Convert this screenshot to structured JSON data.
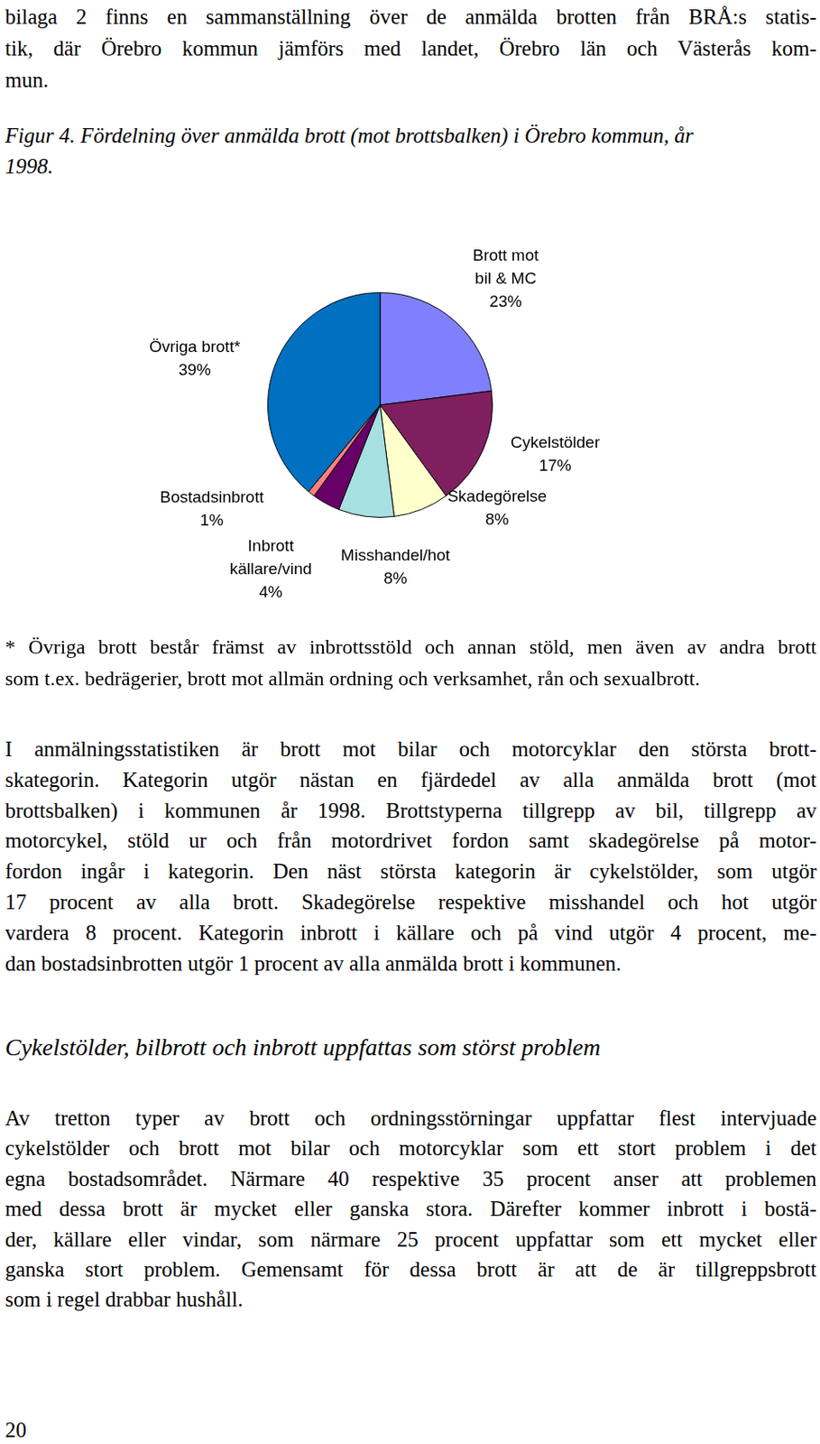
{
  "page": {
    "intro": [
      "bilaga 2 finns en sammanställning över de anmälda brotten från BRÅ:s statis-",
      "tik, där Örebro kommun jämförs med landet, Örebro län och Västerås kom-",
      "mun."
    ],
    "caption": [
      "Figur 4. Fördelning över anmälda brott (mot brottsbalken) i Örebro kommun, år",
      "1998."
    ],
    "footnote": [
      "* Övriga brott består främst av inbrottsstöld och annan stöld, men även av andra brott",
      "som t.ex. bedrägerier, brott mot allmän ordning och verksamhet, rån och sexualbrott."
    ],
    "paragraph1": [
      "I anmälningsstatistiken är brott mot bilar och motorcyklar den största brott-",
      "skategorin. Kategorin utgör nästan en fjärdedel av alla anmälda brott (mot",
      "brottsbalken) i kommunen år 1998. Brottstyperna tillgrepp av bil, tillgrepp av",
      "motorcykel, stöld ur och från motordrivet fordon samt skadegörelse på motor-",
      "fordon ingår i kategorin. Den näst största kategorin är cykelstölder, som utgör",
      "17 procent av alla brott. Skadegörelse respektive misshandel och hot utgör",
      "vardera 8 procent. Kategorin inbrott i källare och på vind utgör 4 procent, me-",
      "dan bostadsinbrotten utgör 1 procent av alla anmälda brott i kommunen."
    ],
    "heading": "Cykelstölder, bilbrott och inbrott uppfattas som störst problem",
    "paragraph2": [
      "Av tretton typer av brott och ordningsstörningar uppfattar flest intervjuade",
      "cykelstölder och brott mot bilar och motorcyklar som ett stort problem i det",
      "egna bostadsområdet. Närmare 40 respektive 35 procent anser att problemen",
      "med dessa brott är mycket eller ganska stora. Därefter kommer inbrott i bostä-",
      "der, källare eller vindar, som närmare 25 procent uppfattar som ett mycket eller",
      "ganska stort problem. Gemensamt för dessa brott är att de är tillgreppsbrott",
      "som i regel drabbar hushåll."
    ],
    "page_number": "20"
  },
  "chart_data": {
    "type": "pie",
    "categories": [
      "Brott mot bil & MC",
      "Cykelstölder",
      "Skadegörelse",
      "Misshandel/hot",
      "Inbrott källare/vind",
      "Bostadsinbrott",
      "Övriga brott*"
    ],
    "values": [
      23,
      17,
      8,
      8,
      4,
      1,
      39
    ],
    "value_labels": [
      "23%",
      "17%",
      "8%",
      "8%",
      "4%",
      "1%",
      "39%"
    ],
    "colors": [
      "#8080ff",
      "#7f1f5f",
      "#ffffcc",
      "#a6e0e0",
      "#660066",
      "#ff8080",
      "#0070c0"
    ],
    "data_labels": true
  }
}
